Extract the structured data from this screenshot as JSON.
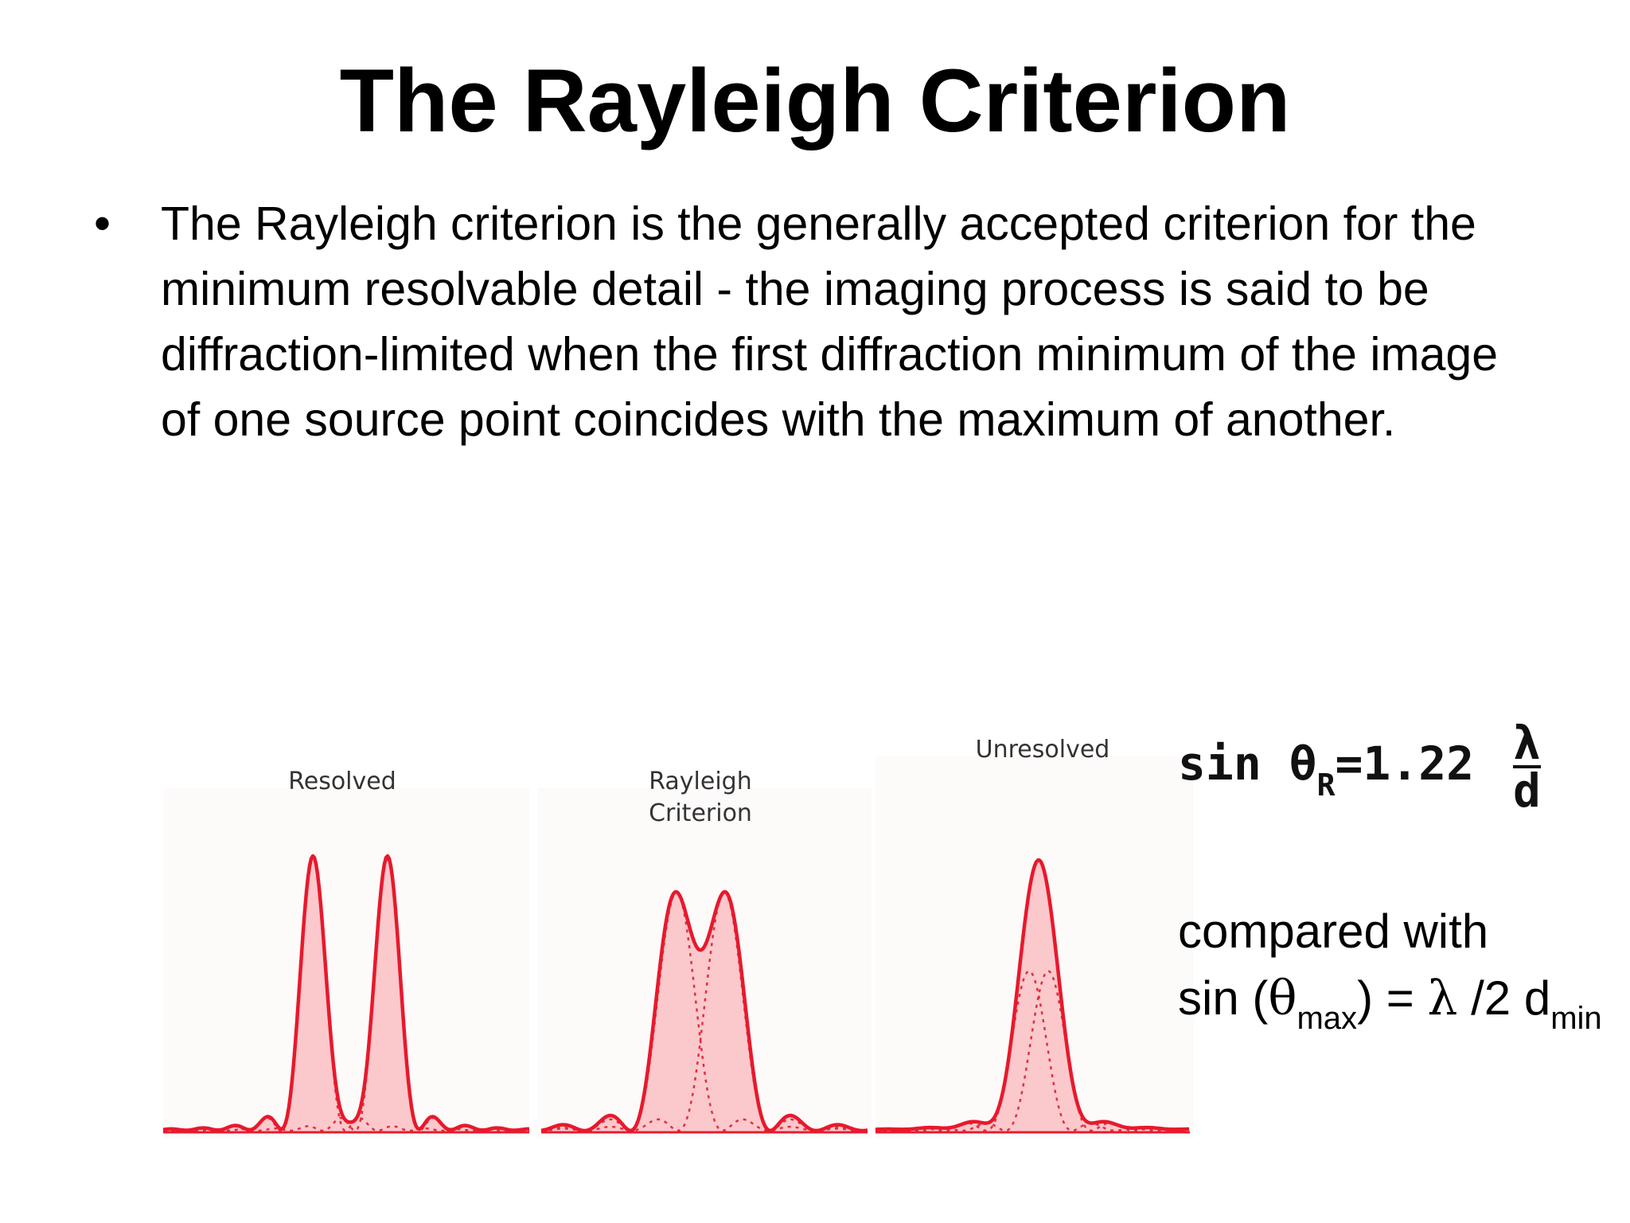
{
  "slide": {
    "title": "The Rayleigh Criterion",
    "bullet": "The Rayleigh criterion is the generally accepted criterion for the minimum resolvable detail - the imaging process is said to be diffraction-limited when the first diffraction minimum of the image of one source point coincides with the maximum of another."
  },
  "figure": {
    "panels": [
      {
        "label_line1": "Resolved",
        "label_line2": ""
      },
      {
        "label_line1": "Rayleigh",
        "label_line2": "Criterion"
      },
      {
        "label_line1": "Unresolved",
        "label_line2": ""
      }
    ],
    "colors": {
      "envelope": "#e8192c",
      "fill": "#fbc8cc",
      "component": "#e03040"
    }
  },
  "formula_rayleigh": {
    "lhs": "sin θ",
    "subscript": "R",
    "eq": "=1.22",
    "numerator": "λ",
    "denominator": "d"
  },
  "comparison": {
    "line1": "compared with",
    "prefix": "sin (",
    "theta": "θ",
    "theta_sub": "max",
    "middle": ") = ",
    "lambda": "λ",
    "suffix": " /2 d",
    "d_sub": "min"
  }
}
